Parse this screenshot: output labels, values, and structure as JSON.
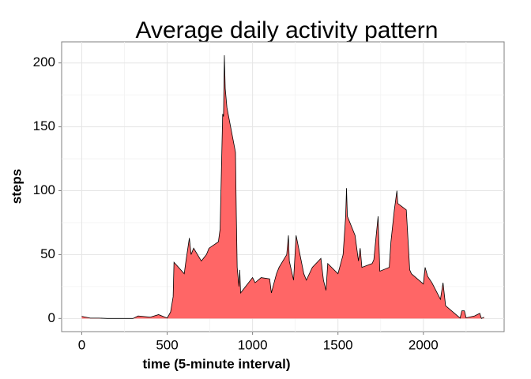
{
  "chart_data": {
    "type": "area",
    "title": "Average daily activity pattern",
    "x_label": "time (5-minute interval)",
    "y_label": "steps",
    "x": [
      0,
      50,
      100,
      150,
      200,
      300,
      330,
      400,
      450,
      500,
      520,
      535,
      540,
      600,
      610,
      630,
      640,
      655,
      700,
      730,
      745,
      800,
      810,
      820,
      825,
      830,
      835,
      840,
      850,
      900,
      905,
      910,
      920,
      925,
      930,
      1000,
      1015,
      1050,
      1100,
      1110,
      1140,
      1155,
      1200,
      1210,
      1215,
      1240,
      1255,
      1300,
      1315,
      1350,
      1400,
      1415,
      1430,
      1440,
      1500,
      1530,
      1545,
      1550,
      1555,
      1600,
      1620,
      1630,
      1640,
      1700,
      1710,
      1720,
      1735,
      1745,
      1800,
      1810,
      1830,
      1845,
      1850,
      1900,
      1915,
      1920,
      1930,
      2000,
      2010,
      2025,
      2050,
      2100,
      2115,
      2130,
      2200,
      2215,
      2225,
      2240,
      2250,
      2300,
      2330,
      2340,
      2355
    ],
    "y": [
      1.7,
      0.3,
      0.3,
      0,
      0,
      0,
      2,
      1,
      3,
      0.3,
      5,
      17,
      44,
      35,
      45,
      63,
      50,
      55,
      45,
      50,
      55,
      60,
      70,
      130,
      160,
      158,
      206,
      180,
      165,
      130,
      80,
      40,
      25,
      38,
      20,
      32,
      28,
      32,
      31,
      20,
      35,
      40,
      50,
      65,
      45,
      30,
      65,
      35,
      30,
      40,
      47,
      30,
      22,
      43,
      35,
      50,
      80,
      102,
      80,
      65,
      45,
      55,
      40,
      43,
      46,
      60,
      80,
      37,
      40,
      60,
      85,
      100,
      90,
      85,
      50,
      38,
      35,
      27,
      40,
      33,
      28,
      15,
      28,
      10,
      2,
      0.3,
      6,
      6,
      0.5,
      2,
      4,
      0,
      1
    ],
    "color": "#ff6666",
    "line_color": "#000000",
    "xlim": [
      -117.75,
      2472.75
    ],
    "ylim": [
      -10.3,
      216.5
    ],
    "xticks": [
      0,
      500,
      1000,
      1500,
      2000
    ],
    "yticks": [
      0,
      50,
      100,
      150,
      200
    ],
    "x_minor_ticks": [
      250,
      750,
      1250,
      1750,
      2250
    ],
    "y_minor_ticks": [
      25,
      75,
      125,
      175
    ],
    "grid": true
  }
}
